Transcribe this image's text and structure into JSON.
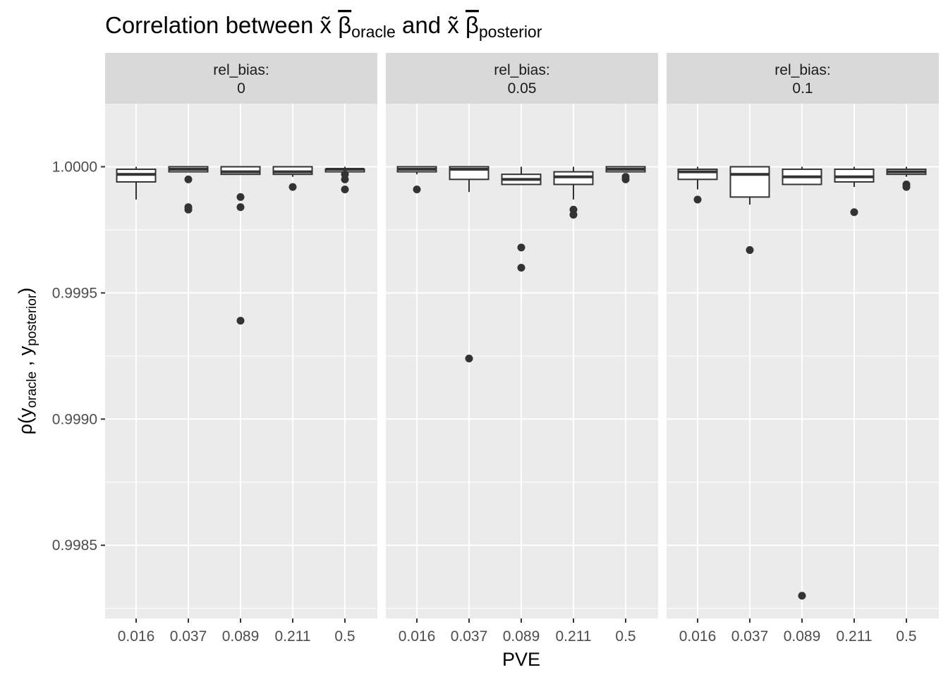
{
  "chart_data": {
    "type": "box",
    "title": {
      "prefix": "Correlation between ",
      "xsym": "x̃",
      "beta": "β",
      "sub1": "oracle",
      "mid": " and ",
      "sub2": "posterior"
    },
    "xlabel": "PVE",
    "ylabel": {
      "rho": "ρ(y",
      "sub1": "oracle",
      "sep": " , y",
      "sub2": "posterior",
      "close": ")"
    },
    "categories": [
      "0.016",
      "0.037",
      "0.089",
      "0.211",
      "0.5"
    ],
    "ylim": [
      0.99821,
      1.00025
    ],
    "yticks": [
      0.9985,
      0.999,
      0.9995,
      1.0
    ],
    "ytick_labels": [
      "0.9985",
      "0.9990",
      "0.9995",
      "1.0000"
    ],
    "facet_label_prefix": "rel_bias:",
    "grid": true,
    "legend": "none",
    "colors": {
      "panel": "#ebebeb",
      "strip": "#d9d9d9",
      "grid": "#ffffff",
      "box": "#333333"
    },
    "panels": [
      {
        "facet": "0",
        "boxes": [
          {
            "x": "0.016",
            "lower": 0.99987,
            "q1": 0.99994,
            "median": 0.99997,
            "q3": 0.99999,
            "upper": 1.0,
            "outliers": []
          },
          {
            "x": "0.037",
            "lower": 0.99998,
            "q1": 0.99998,
            "median": 0.99999,
            "q3": 1.0,
            "upper": 1.0,
            "outliers": [
              0.99995,
              0.99984,
              0.99983
            ]
          },
          {
            "x": "0.089",
            "lower": 0.99997,
            "q1": 0.99997,
            "median": 0.99998,
            "q3": 1.0,
            "upper": 1.0,
            "outliers": [
              0.99988,
              0.99984,
              0.99939
            ]
          },
          {
            "x": "0.211",
            "lower": 0.99996,
            "q1": 0.99997,
            "median": 0.99998,
            "q3": 1.0,
            "upper": 1.0,
            "outliers": [
              0.99992
            ]
          },
          {
            "x": "0.5",
            "lower": 0.99998,
            "q1": 0.99998,
            "median": 0.99999,
            "q3": 0.99999,
            "upper": 1.0,
            "outliers": [
              0.99997,
              0.99995,
              0.99991
            ]
          }
        ]
      },
      {
        "facet": "0.05",
        "boxes": [
          {
            "x": "0.016",
            "lower": 0.99997,
            "q1": 0.99998,
            "median": 0.99999,
            "q3": 1.0,
            "upper": 1.0,
            "outliers": [
              0.99991
            ]
          },
          {
            "x": "0.037",
            "lower": 0.9999,
            "q1": 0.99995,
            "median": 0.99999,
            "q3": 1.0,
            "upper": 1.0,
            "outliers": [
              0.99924
            ]
          },
          {
            "x": "0.089",
            "lower": 0.99993,
            "q1": 0.99993,
            "median": 0.99995,
            "q3": 0.99997,
            "upper": 1.0,
            "outliers": [
              0.99968,
              0.9996
            ]
          },
          {
            "x": "0.211",
            "lower": 0.99987,
            "q1": 0.99993,
            "median": 0.99996,
            "q3": 0.99998,
            "upper": 1.0,
            "outliers": [
              0.99983,
              0.99981
            ]
          },
          {
            "x": "0.5",
            "lower": 0.99998,
            "q1": 0.99998,
            "median": 0.99999,
            "q3": 1.0,
            "upper": 1.0,
            "outliers": [
              0.99996,
              0.99995
            ]
          }
        ]
      },
      {
        "facet": "0.1",
        "boxes": [
          {
            "x": "0.016",
            "lower": 0.99991,
            "q1": 0.99995,
            "median": 0.99998,
            "q3": 0.99999,
            "upper": 1.0,
            "outliers": [
              0.99987
            ]
          },
          {
            "x": "0.037",
            "lower": 0.99985,
            "q1": 0.99988,
            "median": 0.99997,
            "q3": 1.0,
            "upper": 1.0,
            "outliers": [
              0.99967
            ]
          },
          {
            "x": "0.089",
            "lower": 0.99993,
            "q1": 0.99993,
            "median": 0.99996,
            "q3": 0.99999,
            "upper": 1.0,
            "outliers": [
              0.9983
            ]
          },
          {
            "x": "0.211",
            "lower": 0.99992,
            "q1": 0.99994,
            "median": 0.99996,
            "q3": 0.99999,
            "upper": 1.0,
            "outliers": [
              0.99982
            ]
          },
          {
            "x": "0.5",
            "lower": 0.99996,
            "q1": 0.99997,
            "median": 0.99998,
            "q3": 0.99999,
            "upper": 1.0,
            "outliers": [
              0.99993,
              0.99992
            ]
          }
        ]
      }
    ]
  }
}
